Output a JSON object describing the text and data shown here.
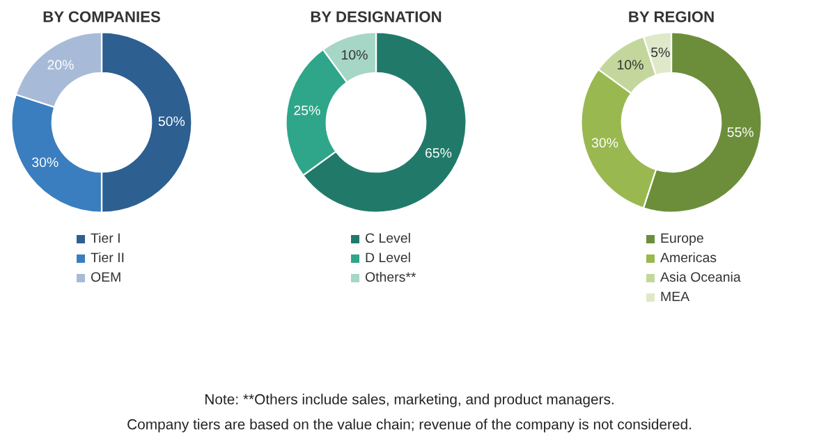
{
  "chart_data": [
    {
      "type": "donut",
      "title": "BY COMPANIES",
      "categories": [
        "Tier I",
        "Tier II",
        "OEM"
      ],
      "values": [
        50,
        30,
        20
      ],
      "value_labels": [
        "50%",
        "30%",
        "20%"
      ],
      "colors": [
        "#2d5f91",
        "#3a7ebf",
        "#a7bbd9"
      ],
      "legend": "bottom",
      "annotations": [
        "Note: **Others include sales, marketing, and product managers.",
        "Company tiers are based on the value chain; revenue of the company is not considered."
      ]
    },
    {
      "type": "donut",
      "title": "BY DESIGNATION",
      "categories": [
        "C Level",
        "D Level",
        "Others**"
      ],
      "values": [
        65,
        25,
        10
      ],
      "value_labels": [
        "65%",
        "25%",
        "10%"
      ],
      "colors": [
        "#217a69",
        "#2fa68a",
        "#a6d6c6"
      ],
      "legend": "bottom"
    },
    {
      "type": "donut",
      "title": "BY REGION",
      "categories": [
        "Europe",
        "Americas",
        "Asia Oceania",
        "MEA"
      ],
      "values": [
        55,
        30,
        10,
        5
      ],
      "value_labels": [
        "55%",
        "30%",
        "10%",
        "5%"
      ],
      "colors": [
        "#6c8e3a",
        "#99b84f",
        "#c3d79c",
        "#dfe9c9"
      ],
      "legend": "bottom"
    }
  ]
}
